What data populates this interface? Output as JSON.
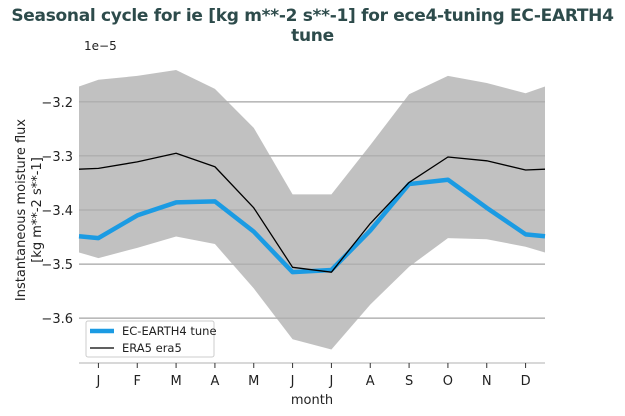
{
  "chart_data": {
    "type": "line",
    "title": "Seasonal cycle for ie [kg m**-2 s**-1] for ece4-tuning EC-EARTH4 tune",
    "xlabel": "month",
    "ylabel": [
      "Instantaneous moisture flux",
      "[kg m**-2 s**-1]"
    ],
    "y_scale_label": "1e−5",
    "categories": [
      "J",
      "F",
      "M",
      "A",
      "M",
      "J",
      "J",
      "A",
      "S",
      "O",
      "N",
      "D"
    ],
    "ylim": [
      -3.683,
      -3.117
    ],
    "yticks": [
      -3.2,
      -3.3,
      -3.4,
      -3.5,
      -3.6
    ],
    "ytick_labels": [
      "−3.2",
      "−3.3",
      "−3.4",
      "−3.5",
      "−3.6"
    ],
    "grid": "horizontal",
    "legend_position": "bottom-left",
    "series": [
      {
        "name": "EC-EARTH4 tune",
        "color": "#1b9be3",
        "values": [
          -3.452,
          -3.41,
          -3.386,
          -3.384,
          -3.44,
          -3.515,
          -3.511,
          -3.438,
          -3.352,
          -3.344,
          -3.396,
          -3.445
        ]
      },
      {
        "name": "ERA5 era5",
        "color": "#000000",
        "values": [
          -3.323,
          -3.311,
          -3.295,
          -3.32,
          -3.396,
          -3.506,
          -3.515,
          -3.425,
          -3.349,
          -3.302,
          -3.309,
          -3.326
        ]
      }
    ],
    "band": {
      "color": "#bebebe",
      "upper": [
        -3.159,
        -3.152,
        -3.141,
        -3.176,
        -3.248,
        -3.371,
        -3.371,
        -3.28,
        -3.186,
        -3.152,
        -3.165,
        -3.184
      ],
      "lower": [
        -3.489,
        -3.47,
        -3.449,
        -3.463,
        -3.545,
        -3.639,
        -3.658,
        -3.575,
        -3.505,
        -3.452,
        -3.454,
        -3.468
      ]
    }
  }
}
